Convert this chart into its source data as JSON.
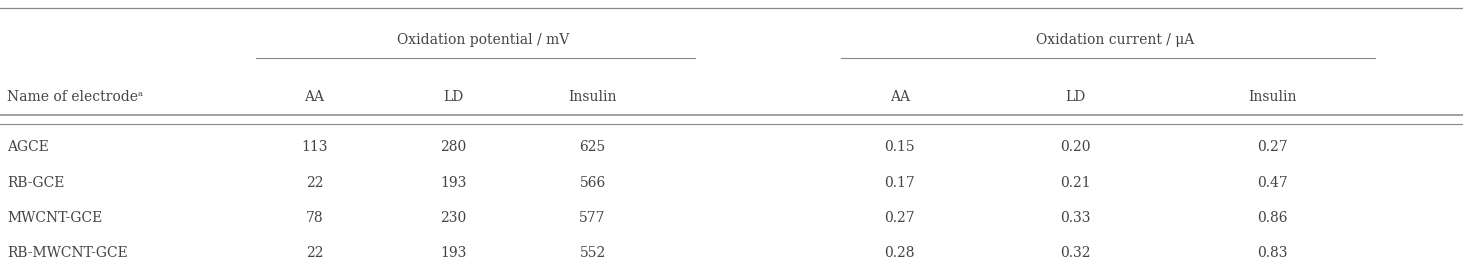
{
  "electrode_label": "Name of electrodeᵃ",
  "group1_label": "Oxidation potential / mV",
  "group2_label": "Oxidation current / μA",
  "subheaders": [
    "AA",
    "LD",
    "Insulin",
    "AA",
    "LD",
    "Insulin"
  ],
  "rows": [
    [
      "AGCE",
      "113",
      "280",
      "625",
      "0.15",
      "0.20",
      "0.27"
    ],
    [
      "RB-GCE",
      "22",
      "193",
      "566",
      "0.17",
      "0.21",
      "0.47"
    ],
    [
      "MWCNT-GCE",
      "78",
      "230",
      "577",
      "0.27",
      "0.33",
      "0.86"
    ],
    [
      "RB-MWCNT-GCE",
      "22",
      "193",
      "552",
      "0.28",
      "0.32",
      "0.83"
    ]
  ],
  "bg_color": "#ffffff",
  "text_color": "#444444",
  "line_color": "#888888",
  "font_size": 10.0
}
